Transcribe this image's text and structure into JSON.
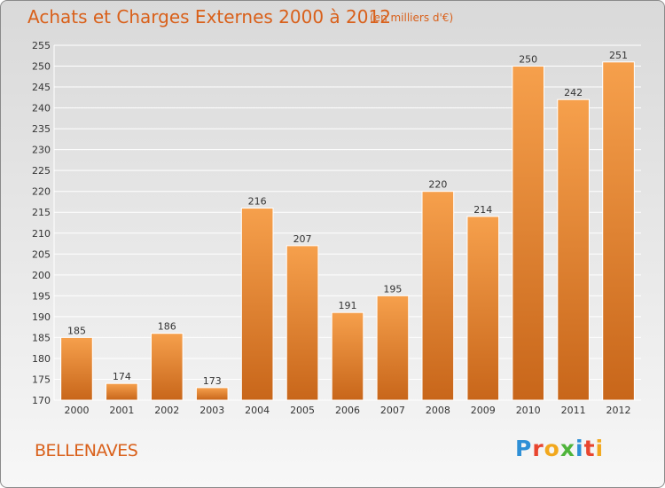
{
  "header": {
    "title": "Achats et Charges Externes 2000 à 2012",
    "subtitle": "(en milliers d'€)"
  },
  "footer": {
    "commune": "BELLENAVES",
    "logo_text": "Proxiti",
    "logo_colors": [
      "#2e8fd6",
      "#e8452f",
      "#f2a81d",
      "#4fb43b",
      "#2e8fd6",
      "#e8452f",
      "#f2a81d"
    ]
  },
  "colors": {
    "bar_light": "#f6a04c",
    "bar_dark": "#c8661a",
    "grid": "#ffffff",
    "title": "#d9601a"
  },
  "chart_data": {
    "type": "bar",
    "title": "Achats et Charges Externes 2000 à 2012",
    "subtitle": "(en milliers d'€)",
    "categories": [
      "2000",
      "2001",
      "2002",
      "2003",
      "2004",
      "2005",
      "2006",
      "2007",
      "2008",
      "2009",
      "2010",
      "2011",
      "2012"
    ],
    "values": [
      185,
      174,
      186,
      173,
      216,
      207,
      191,
      195,
      220,
      214,
      250,
      242,
      251
    ],
    "ylim": [
      170,
      255
    ],
    "yticks": [
      170,
      175,
      180,
      185,
      190,
      195,
      200,
      205,
      210,
      215,
      220,
      225,
      230,
      235,
      240,
      245,
      250,
      255
    ],
    "grid": true
  }
}
